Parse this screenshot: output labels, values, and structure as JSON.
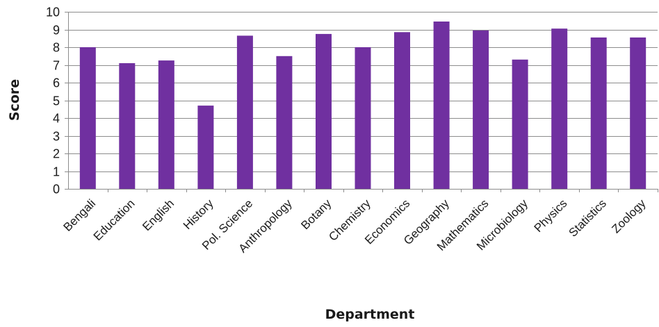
{
  "chart_data": {
    "type": "bar",
    "title": "",
    "xlabel": "Department",
    "ylabel": "Score",
    "ylim": [
      0,
      10
    ],
    "yticks": [
      0,
      1,
      2,
      3,
      4,
      5,
      6,
      7,
      8,
      9,
      10
    ],
    "grid": true,
    "bar_color": "#7030A0",
    "categories": [
      "Bengali",
      "Education",
      "English",
      "History",
      "Pol. Science",
      "Anthropology",
      "Botany",
      "Chemistry",
      "Economics",
      "Geography",
      "Mathematics",
      "Microbiology",
      "Physics",
      "Statistics",
      "Zoology"
    ],
    "values": [
      8.0,
      7.1,
      7.25,
      4.7,
      8.65,
      7.5,
      8.75,
      8.0,
      8.85,
      9.45,
      8.95,
      7.3,
      9.05,
      8.55,
      8.55
    ]
  }
}
